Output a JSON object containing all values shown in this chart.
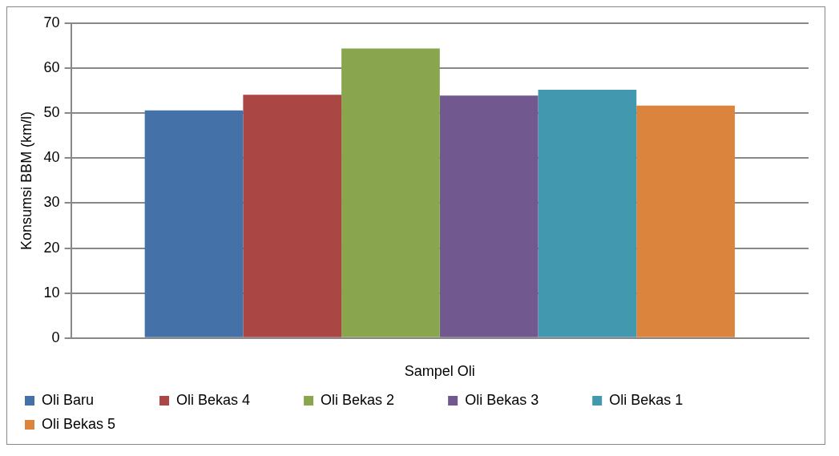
{
  "chart_data": {
    "type": "bar",
    "xlabel": "Sampel Oli",
    "ylabel": "Konsumsi BBM (km/l)",
    "categories": [
      null
    ],
    "series": [
      {
        "name": "Oli Baru",
        "color": "#4472a8",
        "values": [
          50.6
        ]
      },
      {
        "name": "Oli Bekas 4",
        "color": "#aa4643",
        "values": [
          54.1
        ]
      },
      {
        "name": "Oli Bekas 2",
        "color": "#89a54e",
        "values": [
          64.4
        ]
      },
      {
        "name": "Oli Bekas 3",
        "color": "#71588f",
        "values": [
          53.9
        ]
      },
      {
        "name": "Oli Bekas 1",
        "color": "#4198af",
        "values": [
          55.2
        ]
      },
      {
        "name": "Oli Bekas 5",
        "color": "#db843d",
        "values": [
          51.7
        ]
      }
    ],
    "ylim": [
      0,
      70
    ],
    "yticks": [
      0,
      10,
      20,
      30,
      40,
      50,
      60,
      70
    ],
    "grid": "y",
    "legend": "bottom"
  }
}
